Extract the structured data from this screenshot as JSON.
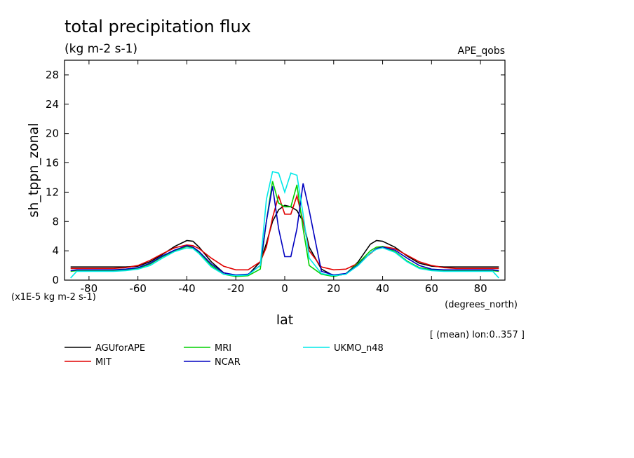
{
  "chart_data": {
    "type": "line",
    "title": "total precipitation flux",
    "units": "(kg m-2 s-1)",
    "dataset": "APE_qobs",
    "ylabel": "sh_tppn_zonal",
    "yscale_note": "(x1E-5 kg m-2 s-1)",
    "xlabel": "lat",
    "xunits": "(degrees_north)",
    "note": "[ (mean) lon:0..357 ]",
    "xlim": [
      -90,
      90
    ],
    "ylim": [
      0,
      30
    ],
    "xticks": [
      -80,
      -60,
      -40,
      -20,
      0,
      20,
      40,
      60,
      80
    ],
    "yticks": [
      0,
      4,
      8,
      12,
      16,
      20,
      24,
      28
    ],
    "x": [
      -87.5,
      -85,
      -80,
      -75,
      -70,
      -65,
      -60,
      -55,
      -50,
      -45,
      -40,
      -37.5,
      -35,
      -30,
      -25,
      -20,
      -15,
      -10,
      -7.5,
      -5,
      -2.5,
      0,
      2.5,
      5,
      7.5,
      10,
      15,
      20,
      25,
      30,
      35,
      37.5,
      40,
      45,
      50,
      55,
      60,
      65,
      70,
      75,
      80,
      85,
      87.5
    ],
    "series": [
      {
        "name": "AGUforAPE",
        "color": "#000000",
        "values": [
          1.8,
          1.8,
          1.8,
          1.8,
          1.8,
          1.8,
          1.9,
          2.5,
          3.5,
          4.6,
          5.4,
          5.3,
          4.5,
          2.5,
          1.0,
          0.6,
          0.7,
          2.5,
          5.0,
          8.0,
          9.6,
          10.2,
          10.0,
          9.5,
          8.0,
          4.5,
          1.5,
          0.6,
          0.8,
          2.5,
          4.9,
          5.4,
          5.3,
          4.5,
          3.3,
          2.3,
          1.9,
          1.8,
          1.8,
          1.8,
          1.8,
          1.8,
          1.8
        ]
      },
      {
        "name": "MIT",
        "color": "#e00000",
        "values": [
          1.6,
          1.6,
          1.6,
          1.6,
          1.6,
          1.7,
          2.0,
          2.7,
          3.6,
          4.4,
          4.8,
          4.7,
          4.3,
          3.0,
          1.9,
          1.4,
          1.4,
          2.5,
          4.5,
          8.5,
          11.5,
          9.0,
          9.0,
          11.5,
          8.0,
          4.0,
          1.8,
          1.4,
          1.5,
          2.3,
          3.6,
          4.3,
          4.6,
          4.3,
          3.4,
          2.5,
          2.0,
          1.7,
          1.6,
          1.6,
          1.6,
          1.6,
          1.6
        ]
      },
      {
        "name": "MRI",
        "color": "#00d000",
        "values": [
          1.2,
          1.3,
          1.3,
          1.3,
          1.3,
          1.4,
          1.6,
          2.2,
          3.2,
          4.0,
          4.6,
          4.4,
          3.8,
          2.0,
          0.8,
          0.5,
          0.6,
          1.5,
          8.0,
          13.5,
          10.5,
          10.0,
          10.0,
          13.0,
          7.0,
          2.0,
          0.8,
          0.5,
          0.9,
          2.3,
          4.0,
          4.5,
          4.6,
          3.9,
          2.6,
          1.7,
          1.4,
          1.3,
          1.3,
          1.3,
          1.3,
          1.3,
          1.2
        ]
      },
      {
        "name": "NCAR",
        "color": "#0000c0",
        "values": [
          1.3,
          1.4,
          1.4,
          1.4,
          1.4,
          1.5,
          1.7,
          2.3,
          3.3,
          4.1,
          4.7,
          4.5,
          3.9,
          2.2,
          1.0,
          0.7,
          0.8,
          2.0,
          8.0,
          12.8,
          7.0,
          3.2,
          3.2,
          7.0,
          13.2,
          9.5,
          1.2,
          0.7,
          0.9,
          2.1,
          3.7,
          4.3,
          4.5,
          4.1,
          3.0,
          2.0,
          1.5,
          1.4,
          1.4,
          1.4,
          1.4,
          1.4,
          1.3
        ]
      },
      {
        "name": "UKMO_n48",
        "color": "#00e8e8",
        "values": [
          0.3,
          1.2,
          1.2,
          1.2,
          1.2,
          1.3,
          1.5,
          2.0,
          3.0,
          3.9,
          4.4,
          4.3,
          3.6,
          1.8,
          0.8,
          0.6,
          0.7,
          2.0,
          11.0,
          14.8,
          14.6,
          12.0,
          14.6,
          14.3,
          9.0,
          3.0,
          0.9,
          0.6,
          0.8,
          2.0,
          3.7,
          4.2,
          4.4,
          3.8,
          2.5,
          1.6,
          1.3,
          1.2,
          1.2,
          1.2,
          1.2,
          1.2,
          0.3
        ]
      }
    ],
    "legend": "bottom"
  }
}
